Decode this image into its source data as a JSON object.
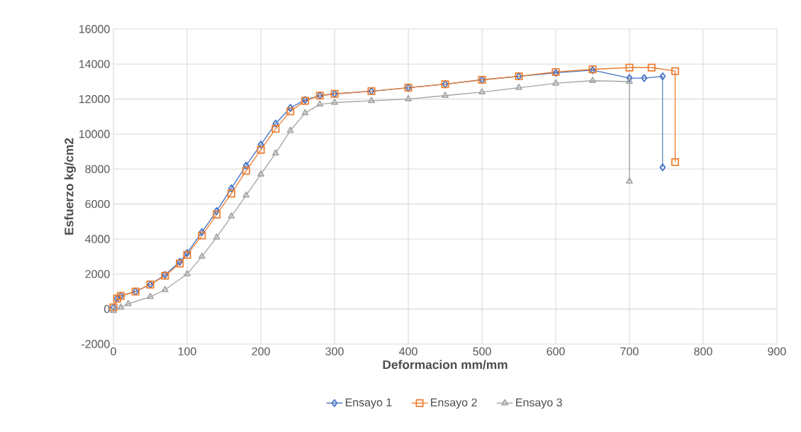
{
  "chart_data": {
    "type": "line",
    "xlabel": "Deformacion mm/mm",
    "ylabel": "Esfuerzo kg/cm2",
    "xlim": [
      0,
      900
    ],
    "ylim": [
      -2000,
      16000
    ],
    "xticks": [
      0,
      100,
      200,
      300,
      400,
      500,
      600,
      700,
      800,
      900
    ],
    "yticks": [
      -2000,
      0,
      2000,
      4000,
      6000,
      8000,
      10000,
      12000,
      14000,
      16000
    ],
    "grid": true,
    "legend": "bottom",
    "line_style": "solid",
    "series": [
      {
        "name": "Ensayo 1",
        "color": "#4472c4",
        "marker": "diamond",
        "x": [
          0,
          5,
          10,
          30,
          50,
          70,
          90,
          100,
          120,
          140,
          160,
          180,
          200,
          220,
          240,
          260,
          280,
          300,
          350,
          400,
          450,
          500,
          550,
          600,
          650,
          700,
          720,
          745,
          745
        ],
        "values": [
          100,
          600,
          750,
          1000,
          1400,
          1950,
          2700,
          3200,
          4400,
          5600,
          6900,
          8200,
          9400,
          10600,
          11500,
          11950,
          12200,
          12300,
          12450,
          12650,
          12850,
          13100,
          13300,
          13500,
          13650,
          13200,
          13200,
          13300,
          8100
        ]
      },
      {
        "name": "Ensayo 2",
        "color": "#ed7d31",
        "marker": "square",
        "x": [
          0,
          5,
          10,
          30,
          50,
          70,
          90,
          100,
          120,
          140,
          160,
          180,
          200,
          220,
          240,
          260,
          280,
          300,
          350,
          400,
          450,
          500,
          550,
          600,
          650,
          700,
          730,
          762,
          762
        ],
        "values": [
          100,
          600,
          750,
          1000,
          1400,
          1900,
          2600,
          3100,
          4200,
          5400,
          6600,
          7900,
          9100,
          10300,
          11300,
          11900,
          12200,
          12300,
          12450,
          12650,
          12850,
          13100,
          13300,
          13550,
          13700,
          13800,
          13800,
          13600,
          8400
        ]
      },
      {
        "name": "Ensayo 3",
        "color": "#a5a5a5",
        "marker": "triangle",
        "x": [
          0,
          10,
          20,
          50,
          70,
          100,
          120,
          140,
          160,
          180,
          200,
          220,
          240,
          260,
          280,
          300,
          350,
          400,
          450,
          500,
          550,
          600,
          650,
          700,
          700
        ],
        "values": [
          -100,
          100,
          300,
          700,
          1100,
          2000,
          3000,
          4100,
          5300,
          6500,
          7700,
          8900,
          10200,
          11200,
          11700,
          11800,
          11900,
          12000,
          12200,
          12400,
          12650,
          12900,
          13050,
          13000,
          7300
        ]
      }
    ]
  }
}
